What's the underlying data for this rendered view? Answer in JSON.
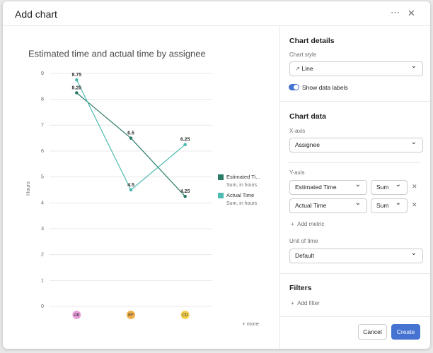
{
  "dialog": {
    "title": "Add chart"
  },
  "chart_data": {
    "type": "line",
    "title": "Estimated time and actual time by assignee",
    "y_label": "Hours",
    "categories": [
      "AB",
      "EF",
      "CD"
    ],
    "category_colors": [
      "#e9a0dc",
      "#f1b04c",
      "#f6d04d"
    ],
    "series": [
      {
        "name": "Estimated Time",
        "subtitle": "Sum, in hours",
        "color": "#2a7a68",
        "values": [
          8.25,
          6.5,
          4.25
        ]
      },
      {
        "name": "Actual Time",
        "subtitle": "Sum, in hours",
        "color": "#4fbab2",
        "values": [
          8.75,
          4.5,
          6.25
        ]
      }
    ],
    "ylim": [
      0,
      9
    ],
    "yticks": [
      0,
      1,
      2,
      3,
      4,
      5,
      6,
      7,
      8,
      9
    ],
    "grid": true,
    "legend": "right",
    "more_link": "+ more"
  },
  "panel": {
    "details": {
      "heading": "Chart details",
      "style_label": "Chart style",
      "style_value": "Line",
      "data_labels": "Show data labels"
    },
    "data": {
      "heading": "Chart data",
      "x_label": "X-axis",
      "x_value": "Assignee",
      "y_label": "Y-axis",
      "metrics": [
        {
          "field": "Estimated Time",
          "agg": "Sum"
        },
        {
          "field": "Actual Time",
          "agg": "Sum"
        }
      ],
      "add_metric": "Add metric",
      "unit_label": "Unit of time",
      "unit_value": "Default"
    },
    "filters": {
      "heading": "Filters",
      "add_filter": "Add filter"
    }
  },
  "footer": {
    "cancel": "Cancel",
    "create": "Create"
  }
}
